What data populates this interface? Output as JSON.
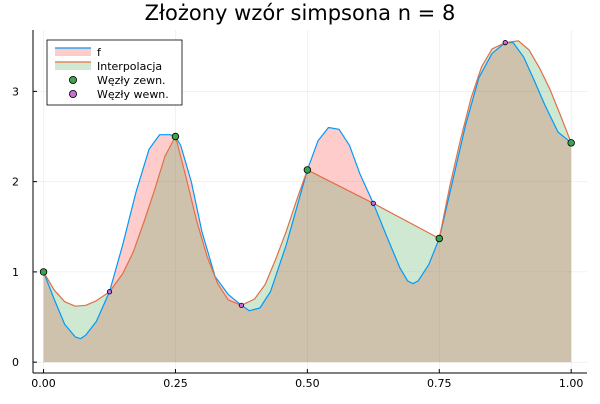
{
  "chart_data": {
    "type": "area",
    "title": "Złożony wzór simpsona n = 8",
    "xlabel": "",
    "ylabel": "",
    "xlim": [
      -0.02,
      1.03
    ],
    "ylim": [
      -0.12,
      3.68
    ],
    "xticks": [
      {
        "value": 0.0,
        "label": "0.00"
      },
      {
        "value": 0.25,
        "label": "0.25"
      },
      {
        "value": 0.5,
        "label": "0.50"
      },
      {
        "value": 0.75,
        "label": "0.75"
      },
      {
        "value": 1.0,
        "label": "1.00"
      }
    ],
    "yticks": [
      {
        "value": 0,
        "label": "0"
      },
      {
        "value": 1,
        "label": "1"
      },
      {
        "value": 2,
        "label": "2"
      },
      {
        "value": 3,
        "label": "3"
      }
    ],
    "grid": true,
    "legend_position": "top-left",
    "series": [
      {
        "name": "f",
        "kind": "line",
        "color": "#009af9",
        "fill": "#ff0000",
        "fill_opacity": 0.2,
        "x": [
          0.0,
          0.02,
          0.04,
          0.06,
          0.07,
          0.08,
          0.1,
          0.125,
          0.15,
          0.175,
          0.2,
          0.22,
          0.24,
          0.25,
          0.26,
          0.28,
          0.3,
          0.325,
          0.35,
          0.375,
          0.39,
          0.41,
          0.43,
          0.46,
          0.5,
          0.52,
          0.54,
          0.56,
          0.58,
          0.6,
          0.625,
          0.65,
          0.675,
          0.69,
          0.7,
          0.71,
          0.73,
          0.75,
          0.775,
          0.8,
          0.825,
          0.85,
          0.875,
          0.89,
          0.91,
          0.93,
          0.95,
          0.975,
          1.0
        ],
        "y": [
          1.0,
          0.7,
          0.42,
          0.28,
          0.26,
          0.3,
          0.45,
          0.78,
          1.3,
          1.88,
          2.36,
          2.52,
          2.52,
          2.5,
          2.4,
          2.0,
          1.45,
          0.95,
          0.75,
          0.63,
          0.57,
          0.6,
          0.78,
          1.3,
          2.13,
          2.45,
          2.6,
          2.58,
          2.4,
          2.08,
          1.76,
          1.4,
          1.05,
          0.9,
          0.87,
          0.9,
          1.08,
          1.37,
          2.0,
          2.63,
          3.15,
          3.42,
          3.54,
          3.54,
          3.38,
          3.12,
          2.85,
          2.55,
          2.43
        ]
      },
      {
        "name": "Interpolacja",
        "kind": "line",
        "color": "#e26f46",
        "fill": "#3da44d",
        "fill_opacity": 0.25,
        "x": [
          0.0,
          0.02,
          0.04,
          0.06,
          0.08,
          0.1,
          0.125,
          0.15,
          0.17,
          0.19,
          0.21,
          0.23,
          0.25,
          0.27,
          0.29,
          0.31,
          0.33,
          0.35,
          0.375,
          0.4,
          0.42,
          0.44,
          0.46,
          0.48,
          0.5,
          0.625,
          0.75,
          0.77,
          0.79,
          0.81,
          0.83,
          0.85,
          0.875,
          0.9,
          0.92,
          0.94,
          0.96,
          0.98,
          1.0
        ],
        "y": [
          1.0,
          0.8,
          0.67,
          0.62,
          0.63,
          0.68,
          0.78,
          0.98,
          1.22,
          1.55,
          1.9,
          2.28,
          2.5,
          2.05,
          1.57,
          1.17,
          0.87,
          0.69,
          0.63,
          0.7,
          0.86,
          1.14,
          1.45,
          1.8,
          2.13,
          1.76,
          1.37,
          1.95,
          2.46,
          2.92,
          3.27,
          3.47,
          3.54,
          3.56,
          3.46,
          3.26,
          3.02,
          2.73,
          2.43
        ]
      }
    ],
    "points": [
      {
        "name": "Węzły zewn.",
        "color": "#3da44d",
        "x": [
          0.0,
          0.25,
          0.5,
          0.75,
          1.0
        ],
        "y": [
          1.0,
          2.5,
          2.13,
          1.37,
          2.43
        ]
      },
      {
        "name": "Węzły wewn.",
        "color": "#c271d2",
        "x": [
          0.125,
          0.375,
          0.625,
          0.875
        ],
        "y": [
          0.78,
          0.63,
          1.76,
          3.54
        ]
      }
    ]
  }
}
